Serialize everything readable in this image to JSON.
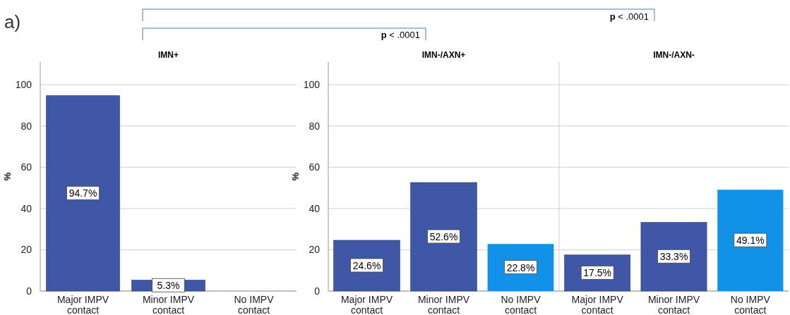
{
  "chart_data": [
    {
      "type": "bar",
      "title": "IMN+",
      "ylabel": "%",
      "categories": [
        "Major IMPV contact",
        "Minor IMPV contact",
        "No IMPV contact"
      ],
      "values": [
        94.7,
        5.3,
        null
      ],
      "colors": [
        "#3f57a6",
        "#3f57a6",
        null
      ],
      "value_labels": [
        "94.7%",
        "5.3%",
        null
      ],
      "ylim": [
        0,
        111
      ],
      "yticks": [
        0,
        20,
        40,
        60,
        80,
        100
      ],
      "grid": "y",
      "annotations": [
        "a)",
        "p < .0001",
        "p < .0001"
      ]
    },
    {
      "type": "bar",
      "title": "IMN-/AXN+",
      "ylabel": "%",
      "categories": [
        "Major IMPV contact",
        "Minor IMPV contact",
        "No IMPV contact"
      ],
      "values": [
        24.6,
        52.6,
        22.8
      ],
      "colors": [
        "#3f57a6",
        "#3f57a6",
        "#1192e8"
      ],
      "value_labels": [
        "24.6%",
        "52.6%",
        "22.8%"
      ],
      "ylim": [
        0,
        111
      ],
      "yticks": [
        0,
        20,
        40,
        60,
        80,
        100
      ],
      "grid": "y"
    },
    {
      "type": "bar",
      "title": "IMN-/AXN-",
      "categories": [
        "Major IMPV contact",
        "Minor IMPV contact",
        "No IMPV contact"
      ],
      "values": [
        17.5,
        33.3,
        49.1
      ],
      "colors": [
        "#3f57a6",
        "#3f57a6",
        "#1192e8"
      ],
      "value_labels": [
        "17.5%",
        "33.3%",
        "49.1%"
      ],
      "ylim": [
        0,
        111
      ],
      "yticks": [
        0,
        20,
        40,
        60,
        80,
        100
      ],
      "grid": "y",
      "tick_labels": "x"
    }
  ]
}
